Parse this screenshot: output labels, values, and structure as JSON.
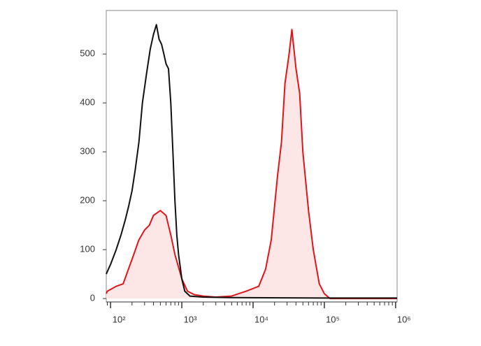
{
  "chart_data": {
    "type": "histogram-line",
    "xscale": "log",
    "xlim": [
      87,
      1050000
    ],
    "ylim": [
      -7,
      589
    ],
    "xticks": [
      {
        "value": 100,
        "label": "10²"
      },
      {
        "value": 1000,
        "label": "10³"
      },
      {
        "value": 10000,
        "label": "10⁴"
      },
      {
        "value": 100000,
        "label": "10⁵"
      },
      {
        "value": 1000000,
        "label": "10⁶"
      }
    ],
    "yticks": [
      0,
      100,
      200,
      300,
      400,
      500
    ],
    "series": [
      {
        "color": "#e0151b",
        "fill": "#fde6e6",
        "x": [
          87,
          90,
          120,
          150,
          200,
          250,
          300,
          350,
          400,
          500,
          600,
          700,
          800,
          1000,
          1200,
          1500,
          2000,
          3000,
          5000,
          8000,
          12000,
          15000,
          18000,
          22000,
          25000,
          28000,
          32000,
          35000,
          40000,
          45000,
          50000,
          60000,
          70000,
          85000,
          100000,
          120000,
          1050000
        ],
        "values": [
          10,
          15,
          25,
          30,
          80,
          120,
          140,
          150,
          170,
          180,
          170,
          130,
          90,
          40,
          15,
          8,
          5,
          3,
          5,
          15,
          25,
          60,
          120,
          250,
          320,
          440,
          500,
          550,
          470,
          420,
          300,
          180,
          100,
          30,
          10,
          0,
          0
        ]
      },
      {
        "color": "#111111",
        "x": [
          87,
          90,
          100,
          120,
          140,
          160,
          180,
          200,
          220,
          250,
          280,
          320,
          360,
          400,
          440,
          480,
          520,
          560,
          600,
          650,
          700,
          750,
          800,
          850,
          900,
          1000,
          1100,
          1300,
          2000,
          5000,
          100000,
          1050000
        ],
        "values": [
          50,
          55,
          70,
          100,
          130,
          160,
          190,
          220,
          260,
          320,
          400,
          460,
          510,
          540,
          560,
          530,
          520,
          500,
          480,
          470,
          400,
          300,
          200,
          130,
          90,
          40,
          15,
          5,
          3,
          2,
          1,
          1
        ]
      }
    ]
  }
}
